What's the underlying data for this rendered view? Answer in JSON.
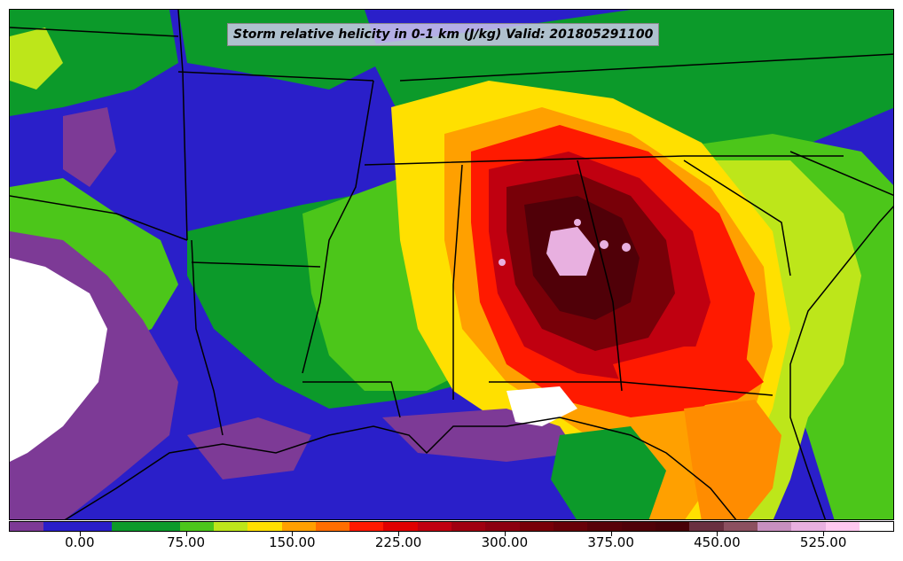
{
  "title": "Storm relative helicity in 0-1 km (J/kg) Valid: 201805291100",
  "colorbar": {
    "min": -50,
    "max": 575,
    "step": 25,
    "colors": [
      "#7d3a96",
      "#2a1fc9",
      "#2a1fc9",
      "#0c9a2a",
      "#0c9a2a",
      "#4cc61a",
      "#bde61a",
      "#ffe000",
      "#ffa000",
      "#ff6e00",
      "#ff1a00",
      "#e00000",
      "#c00010",
      "#a00010",
      "#8c0010",
      "#780008",
      "#680008",
      "#580008",
      "#500008",
      "#480008",
      "#6a3040",
      "#8c5060",
      "#c890c0",
      "#e8b0e0",
      "#ffc8f0",
      "#ffffff"
    ],
    "tick_values": [
      0,
      75,
      150,
      225,
      300,
      375,
      450,
      525
    ],
    "tick_labels": [
      "0.00",
      "75.00",
      "150.00",
      "225.00",
      "300.00",
      "375.00",
      "450.00",
      "525.00"
    ]
  },
  "field_colors": {
    "water": "#2a1fc9",
    "purple": "#7d3a96",
    "white": "#ffffff",
    "dark_green": "#0c9a2a",
    "green": "#4cc61a",
    "yellow_green": "#bde61a",
    "yellow": "#ffe000",
    "orange": "#ff8c00",
    "red": "#ff1a00",
    "dark_red": "#c00010",
    "maroon": "#780008",
    "deep_maroon": "#500008",
    "pink": "#e8b0e0"
  }
}
